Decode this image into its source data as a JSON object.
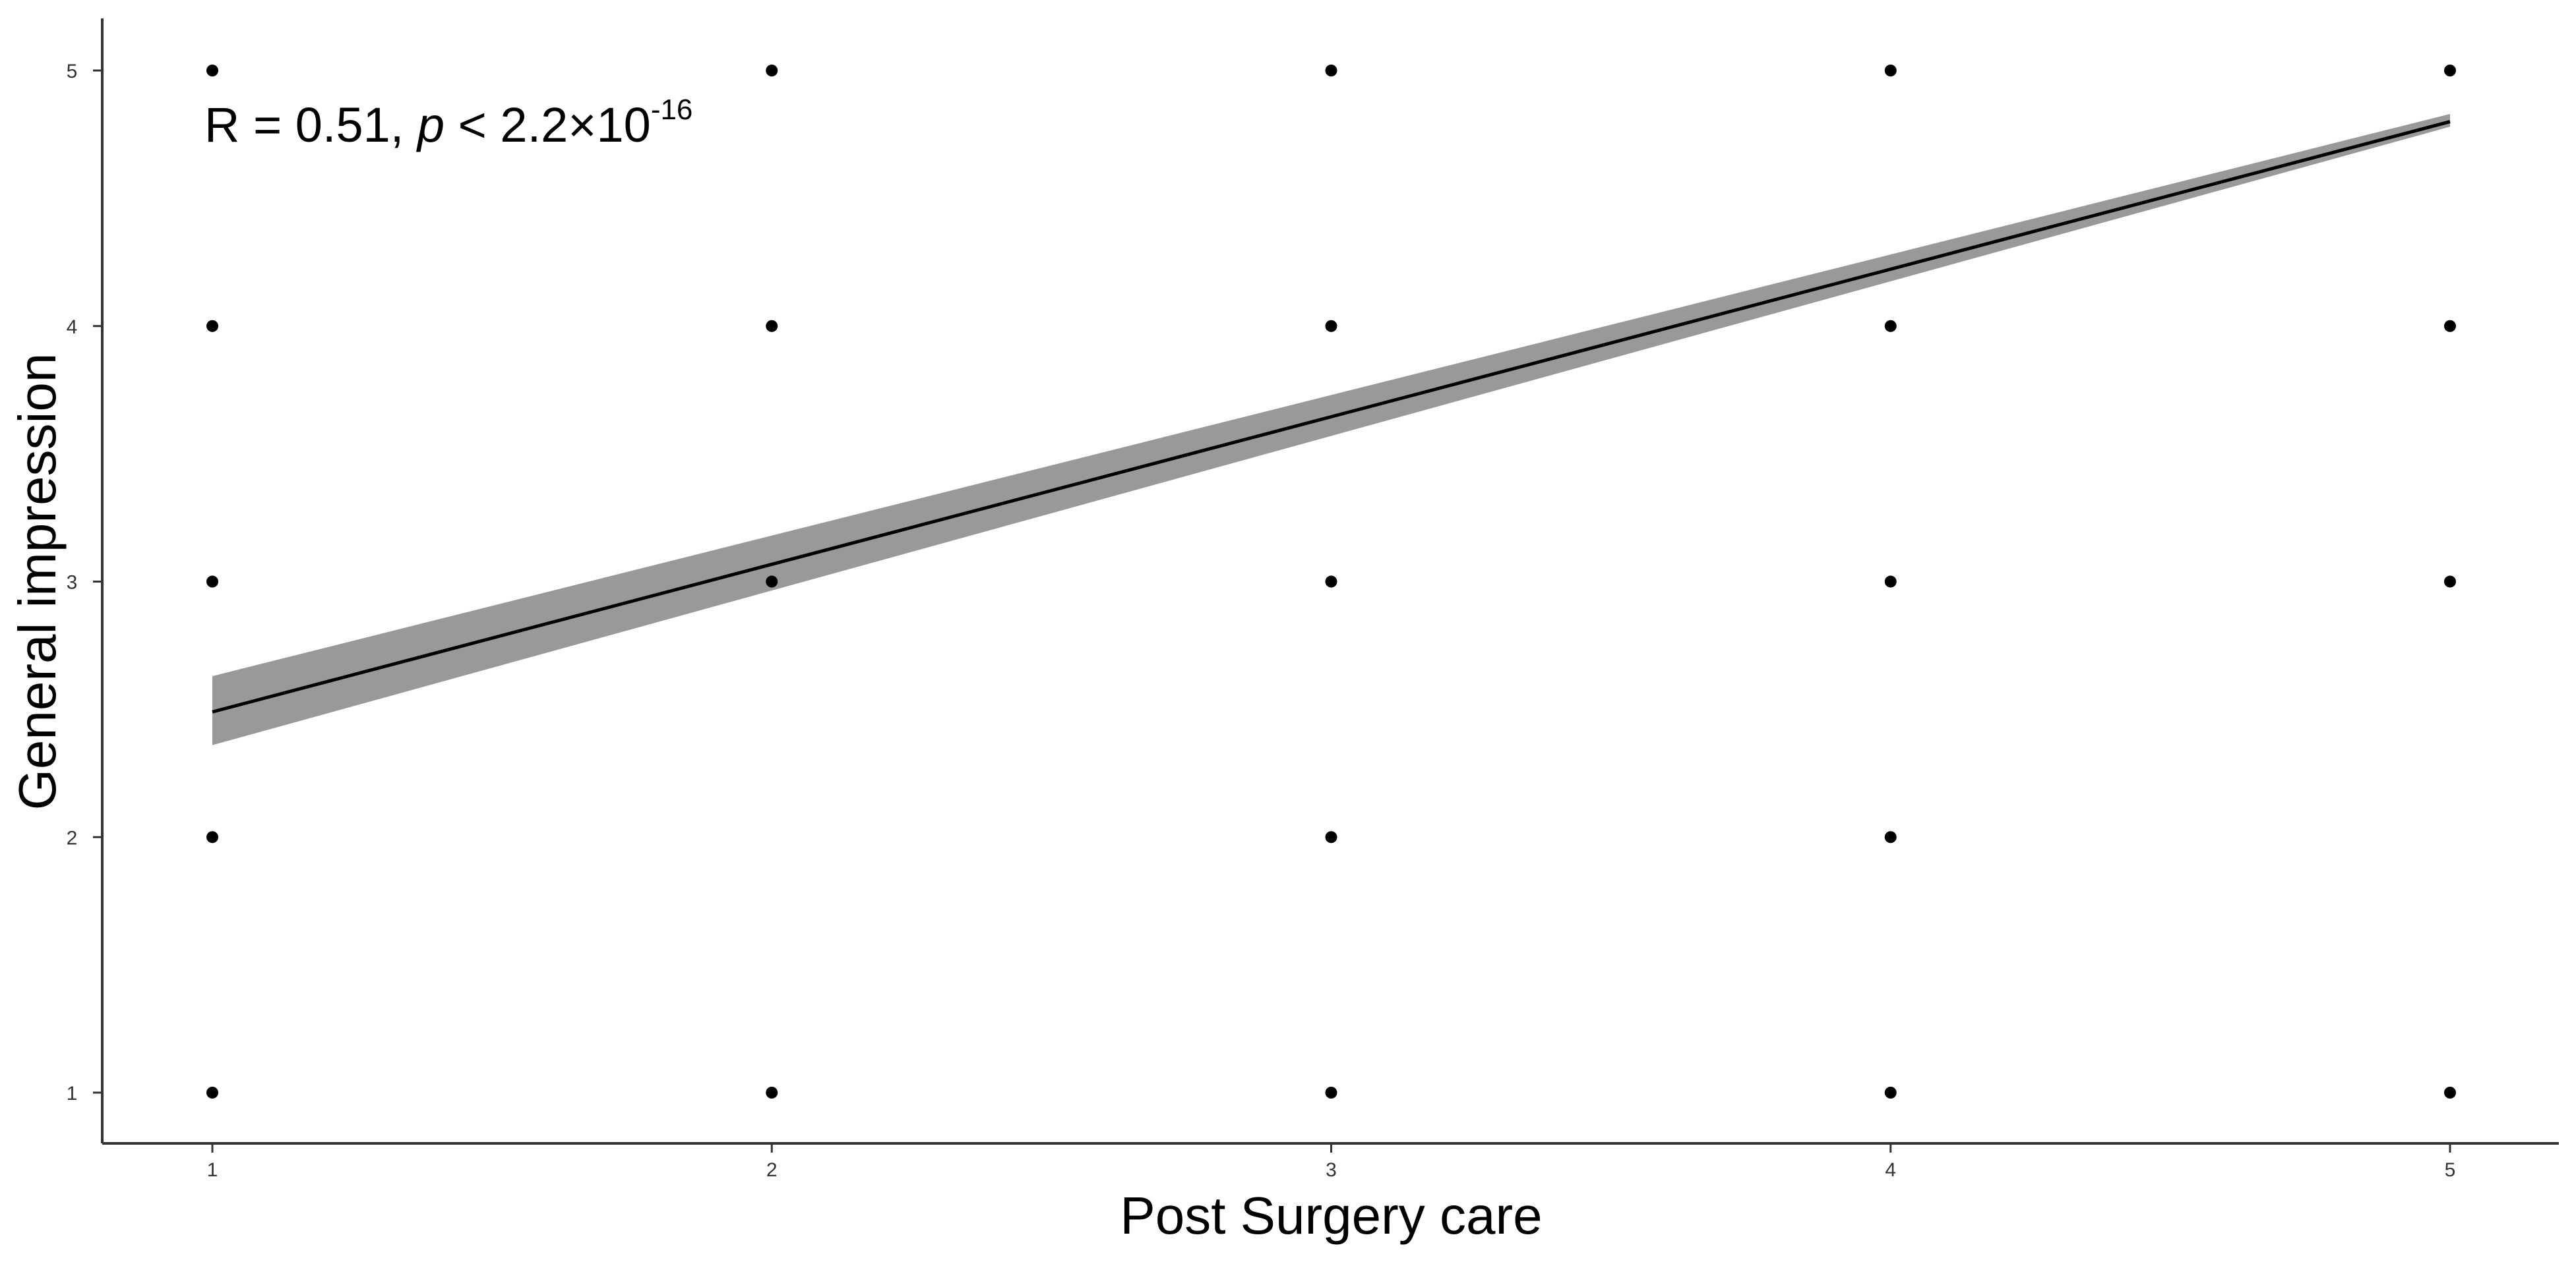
{
  "chart_data": {
    "type": "scatter",
    "title": "",
    "xlabel": "Post Surgery care",
    "ylabel": "General impression",
    "xlim": [
      0.8,
      5.2
    ],
    "ylim": [
      0.8,
      5.2
    ],
    "x_ticks": [
      "1",
      "2",
      "3",
      "4",
      "5"
    ],
    "y_ticks": [
      "1",
      "2",
      "3",
      "4",
      "5"
    ],
    "grid": false,
    "annotation": {
      "prefix": "R = 0.51, ",
      "p_symbol": "p",
      "middle": " < 2.2×10",
      "exponent": "-16"
    },
    "points": [
      {
        "x": 1,
        "y": 5
      },
      {
        "x": 1,
        "y": 4
      },
      {
        "x": 1,
        "y": 3
      },
      {
        "x": 1,
        "y": 2
      },
      {
        "x": 1,
        "y": 1
      },
      {
        "x": 2,
        "y": 5
      },
      {
        "x": 2,
        "y": 4
      },
      {
        "x": 2,
        "y": 3
      },
      {
        "x": 2,
        "y": 1
      },
      {
        "x": 3,
        "y": 5
      },
      {
        "x": 3,
        "y": 4
      },
      {
        "x": 3,
        "y": 3
      },
      {
        "x": 3,
        "y": 2
      },
      {
        "x": 3,
        "y": 1
      },
      {
        "x": 4,
        "y": 5
      },
      {
        "x": 4,
        "y": 4
      },
      {
        "x": 4,
        "y": 3
      },
      {
        "x": 4,
        "y": 2
      },
      {
        "x": 4,
        "y": 1
      },
      {
        "x": 5,
        "y": 5
      },
      {
        "x": 5,
        "y": 4
      },
      {
        "x": 5,
        "y": 3
      },
      {
        "x": 5,
        "y": 1
      }
    ],
    "regression": {
      "x": [
        1,
        5
      ],
      "y": [
        2.49,
        4.8
      ],
      "ci_lower": [
        2.36,
        4.78
      ],
      "ci_upper": [
        2.63,
        4.83
      ]
    },
    "colors": {
      "points": "#000000",
      "line": "#000000",
      "ci_band": "#999999",
      "axis": "#333333"
    }
  }
}
